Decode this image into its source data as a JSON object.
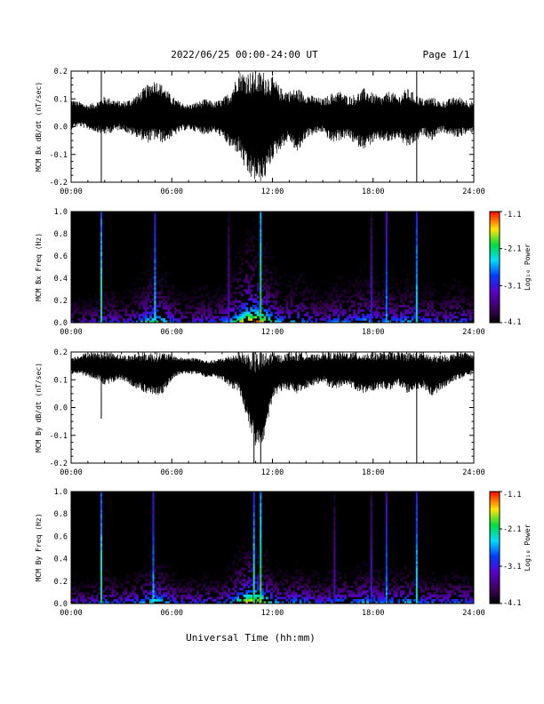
{
  "header": {
    "title": "2022/06/25  00:00-24:00 UT",
    "page": "Page 1/1"
  },
  "footer": {
    "xlabel": "Universal Time (hh:mm)"
  },
  "chart_data": [
    {
      "type": "line",
      "panel": "bx_waveform",
      "ylabel": "MCM Bx dB/dt (nT/sec)",
      "xlim": [
        0,
        24
      ],
      "ylim": [
        -0.2,
        0.2
      ],
      "x_ticks": [
        "00:00",
        "06:00",
        "12:00",
        "18:00",
        "24:00"
      ],
      "y_ticks": [
        "-0.2",
        "-0.1",
        "0.0",
        "0.1",
        "0.2"
      ],
      "y_tick_values": [
        -0.2,
        -0.1,
        0.0,
        0.1,
        0.2
      ],
      "series": [
        {
          "x": [
            0,
            0.5,
            1,
            1.5,
            2,
            2.5,
            3,
            3.5,
            4,
            4.5,
            5,
            5.5,
            6,
            6.5,
            7,
            7.5,
            8,
            8.5,
            9,
            9.5,
            10,
            10.5,
            11,
            11.5,
            12,
            12.5,
            13,
            13.5,
            14,
            14.5,
            15,
            15.5,
            16,
            16.5,
            17,
            17.5,
            18,
            18.5,
            19,
            19.5,
            20,
            20.5,
            21,
            21.5,
            22,
            22.5,
            23,
            23.5,
            24
          ],
          "upper": [
            0.1,
            0.09,
            0.08,
            0.09,
            0.11,
            0.1,
            0.09,
            0.1,
            0.12,
            0.15,
            0.17,
            0.15,
            0.11,
            0.09,
            0.08,
            0.09,
            0.1,
            0.09,
            0.1,
            0.13,
            0.2,
            0.2,
            0.2,
            0.2,
            0.18,
            0.14,
            0.13,
            0.14,
            0.12,
            0.11,
            0.1,
            0.12,
            0.13,
            0.11,
            0.12,
            0.14,
            0.12,
            0.11,
            0.13,
            0.11,
            0.14,
            0.12,
            0.1,
            0.11,
            0.09,
            0.1,
            0.11,
            0.1,
            0.09
          ],
          "lower": [
            -0.01,
            0.0,
            -0.01,
            -0.02,
            -0.03,
            -0.02,
            -0.01,
            -0.03,
            -0.04,
            -0.06,
            -0.05,
            -0.06,
            -0.04,
            -0.02,
            -0.01,
            -0.02,
            -0.03,
            -0.02,
            -0.04,
            -0.08,
            -0.1,
            -0.18,
            -0.2,
            -0.2,
            -0.12,
            -0.08,
            -0.05,
            -0.1,
            -0.04,
            -0.03,
            -0.02,
            -0.06,
            -0.05,
            -0.04,
            -0.07,
            -0.08,
            -0.06,
            -0.05,
            -0.06,
            -0.04,
            -0.08,
            -0.06,
            -0.03,
            -0.05,
            -0.02,
            -0.03,
            -0.04,
            -0.03,
            -0.02
          ]
        }
      ],
      "spikes": [
        {
          "x": 1.8,
          "y_min": -0.2,
          "y_max": 0.2
        },
        {
          "x": 20.6,
          "y_min": -0.2,
          "y_max": 0.2
        }
      ]
    },
    {
      "type": "heatmap",
      "panel": "bx_spectrogram",
      "ylabel": "MCM Bx Freq (Hz)",
      "colorbar_label": "Log₁₀ Power",
      "xlim": [
        0,
        24
      ],
      "ylim": [
        0,
        1.0
      ],
      "x_ticks": [
        "00:00",
        "06:00",
        "12:00",
        "18:00",
        "24:00"
      ],
      "y_ticks": [
        "0.0",
        "0.2",
        "0.4",
        "0.6",
        "0.8",
        "1.0"
      ],
      "y_tick_values": [
        0.0,
        0.2,
        0.4,
        0.6,
        0.8,
        1.0
      ],
      "colorbar_ticks": [
        "-1.1",
        "-2.1",
        "-3.1",
        "-4.1"
      ],
      "colorbar_tick_values": [
        -1.1,
        -2.1,
        -3.1,
        -4.1
      ],
      "clim": [
        -4.1,
        -1.1
      ],
      "background_level": -3.1,
      "activity": [
        0.35,
        0.3,
        0.3,
        0.35,
        0.45,
        0.4,
        0.35,
        0.4,
        0.5,
        0.65,
        0.75,
        0.65,
        0.5,
        0.4,
        0.35,
        0.4,
        0.45,
        0.4,
        0.5,
        0.6,
        0.8,
        1.0,
        1.0,
        0.9,
        0.7,
        0.55,
        0.55,
        0.6,
        0.5,
        0.45,
        0.4,
        0.5,
        0.55,
        0.5,
        0.55,
        0.6,
        0.55,
        0.5,
        0.55,
        0.5,
        0.6,
        0.55,
        0.45,
        0.5,
        0.4,
        0.45,
        0.5,
        0.45,
        0.4
      ],
      "vertical_bands": [
        {
          "x": 1.8,
          "level": -2.2
        },
        {
          "x": 5.0,
          "level": -2.5
        },
        {
          "x": 9.4,
          "level": -3.3
        },
        {
          "x": 11.3,
          "level": -2.0
        },
        {
          "x": 17.9,
          "level": -3.2
        },
        {
          "x": 18.8,
          "level": -2.7
        },
        {
          "x": 20.6,
          "level": -2.4
        }
      ]
    },
    {
      "type": "line",
      "panel": "by_waveform",
      "ylabel": "MCM By dB/dt (nT/sec)",
      "xlim": [
        0,
        24
      ],
      "ylim": [
        -0.2,
        0.2
      ],
      "x_ticks": [
        "00:00",
        "06:00",
        "12:00",
        "18:00",
        "24:00"
      ],
      "y_ticks": [
        "-0.2",
        "-0.1",
        "0.0",
        "0.1",
        "0.2"
      ],
      "y_tick_values": [
        -0.2,
        -0.1,
        0.0,
        0.1,
        0.2
      ],
      "series": [
        {
          "x": [
            0,
            0.5,
            1,
            1.5,
            2,
            2.5,
            3,
            3.5,
            4,
            4.5,
            5,
            5.5,
            6,
            6.5,
            7,
            7.5,
            8,
            8.5,
            9,
            9.5,
            10,
            10.5,
            11,
            11.5,
            12,
            12.5,
            13,
            13.5,
            14,
            14.5,
            15,
            15.5,
            16,
            16.5,
            17,
            17.5,
            18,
            18.5,
            19,
            19.5,
            20,
            20.5,
            21,
            21.5,
            22,
            22.5,
            23,
            23.5,
            24
          ],
          "upper": [
            0.18,
            0.19,
            0.2,
            0.2,
            0.2,
            0.2,
            0.19,
            0.19,
            0.2,
            0.2,
            0.2,
            0.2,
            0.19,
            0.18,
            0.18,
            0.18,
            0.17,
            0.17,
            0.18,
            0.19,
            0.2,
            0.2,
            0.2,
            0.2,
            0.2,
            0.19,
            0.2,
            0.2,
            0.2,
            0.19,
            0.2,
            0.2,
            0.2,
            0.2,
            0.2,
            0.2,
            0.2,
            0.2,
            0.2,
            0.2,
            0.2,
            0.2,
            0.2,
            0.19,
            0.19,
            0.19,
            0.2,
            0.2,
            0.19
          ],
          "lower": [
            0.12,
            0.12,
            0.11,
            0.1,
            0.08,
            0.09,
            0.1,
            0.08,
            0.06,
            0.05,
            0.04,
            0.05,
            0.1,
            0.12,
            0.12,
            0.12,
            0.11,
            0.11,
            0.1,
            0.07,
            0.06,
            -0.05,
            -0.15,
            -0.12,
            0.03,
            0.06,
            0.06,
            0.05,
            0.07,
            0.08,
            0.09,
            0.07,
            0.07,
            0.08,
            0.06,
            0.05,
            0.06,
            0.07,
            0.06,
            0.08,
            0.05,
            0.06,
            0.07,
            0.04,
            0.06,
            0.08,
            0.1,
            0.11,
            0.12
          ]
        }
      ],
      "spikes": [
        {
          "x": 1.8,
          "y_min": -0.04,
          "y_max": 0.2
        },
        {
          "x": 10.9,
          "y_min": -0.2,
          "y_max": 0.2
        },
        {
          "x": 11.3,
          "y_min": -0.2,
          "y_max": 0.2
        },
        {
          "x": 20.6,
          "y_min": -0.2,
          "y_max": 0.2
        }
      ]
    },
    {
      "type": "heatmap",
      "panel": "by_spectrogram",
      "ylabel": "MCM By Freq (Hz)",
      "colorbar_label": "Log₁₀ Power",
      "xlim": [
        0,
        24
      ],
      "ylim": [
        0,
        1.0
      ],
      "x_ticks": [
        "00:00",
        "06:00",
        "12:00",
        "18:00",
        "24:00"
      ],
      "y_ticks": [
        "0.0",
        "0.2",
        "0.4",
        "0.6",
        "0.8",
        "1.0"
      ],
      "y_tick_values": [
        0.0,
        0.2,
        0.4,
        0.6,
        0.8,
        1.0
      ],
      "colorbar_ticks": [
        "-1.1",
        "-2.1",
        "-3.1",
        "-4.1"
      ],
      "colorbar_tick_values": [
        -1.1,
        -2.1,
        -3.1,
        -4.1
      ],
      "clim": [
        -4.1,
        -1.1
      ],
      "background_level": -3.2,
      "activity": [
        0.45,
        0.4,
        0.4,
        0.45,
        0.55,
        0.5,
        0.45,
        0.5,
        0.55,
        0.65,
        0.75,
        0.65,
        0.55,
        0.45,
        0.45,
        0.45,
        0.5,
        0.45,
        0.5,
        0.6,
        0.8,
        0.95,
        1.0,
        0.85,
        0.65,
        0.55,
        0.55,
        0.6,
        0.55,
        0.5,
        0.45,
        0.55,
        0.6,
        0.55,
        0.55,
        0.65,
        0.6,
        0.55,
        0.6,
        0.55,
        0.65,
        0.6,
        0.5,
        0.55,
        0.45,
        0.5,
        0.55,
        0.5,
        0.45
      ],
      "vertical_bands": [
        {
          "x": 1.8,
          "level": -2.2
        },
        {
          "x": 4.9,
          "level": -2.6
        },
        {
          "x": 10.9,
          "level": -2.3
        },
        {
          "x": 11.3,
          "level": -2.0
        },
        {
          "x": 15.7,
          "level": -3.3
        },
        {
          "x": 17.9,
          "level": -3.2
        },
        {
          "x": 18.8,
          "level": -2.7
        },
        {
          "x": 20.6,
          "level": -2.4
        }
      ]
    }
  ]
}
